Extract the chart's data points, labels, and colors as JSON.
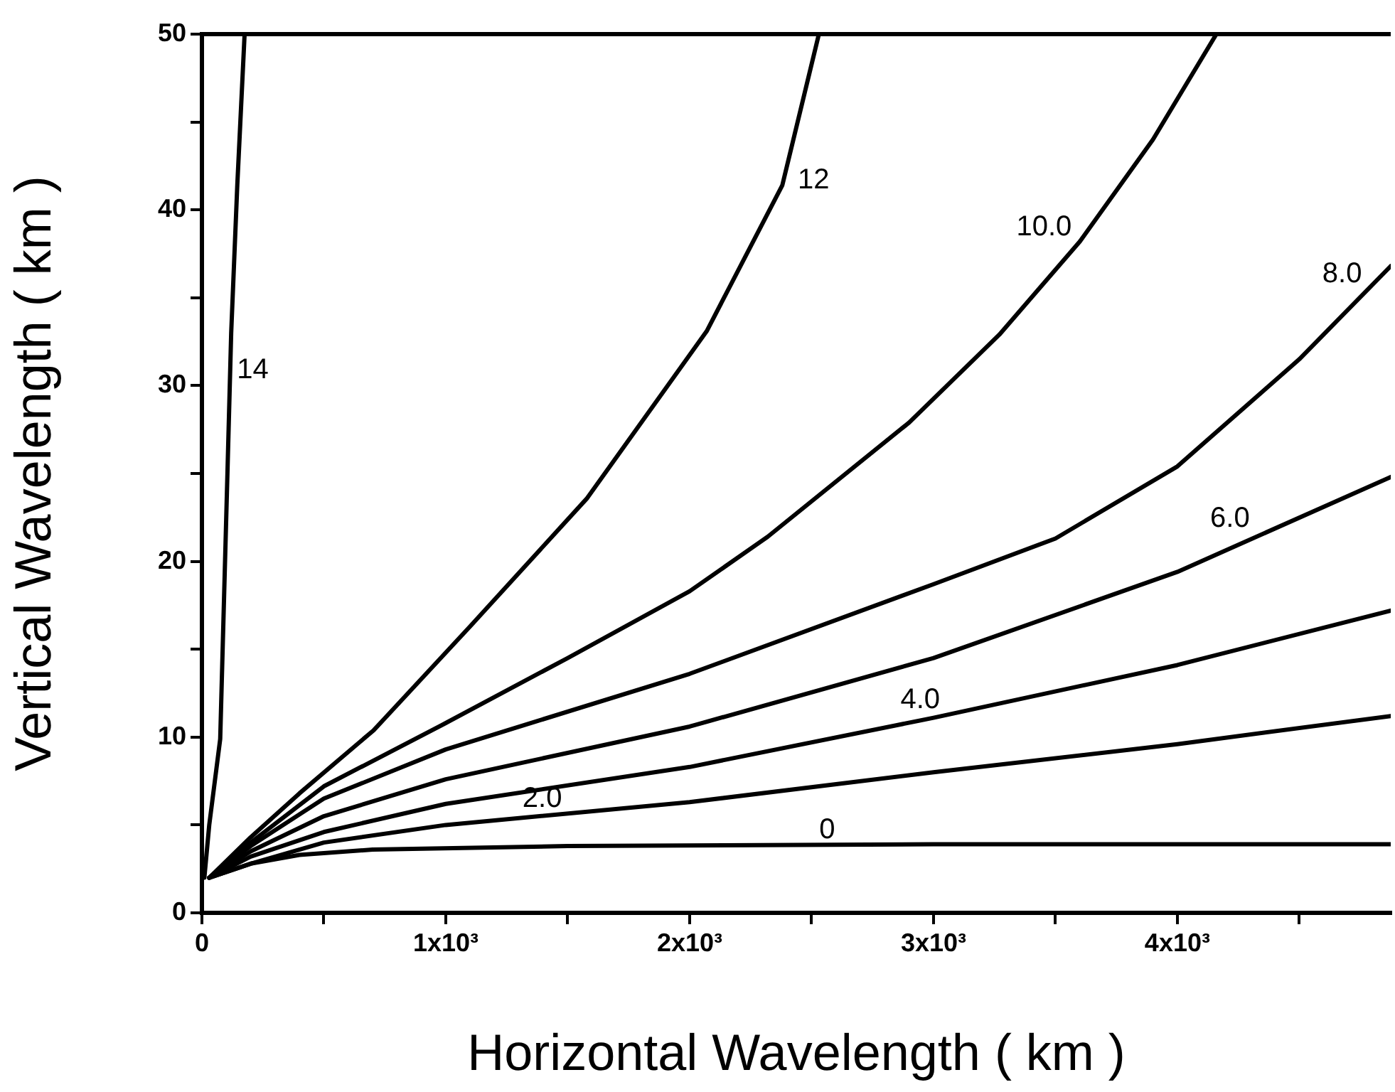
{
  "chart_data": {
    "type": "line",
    "xlabel": "Horizontal Wavelength ( km )",
    "ylabel": "Vertical Wavelength ( km )",
    "xlim": [
      0,
      4875
    ],
    "ylim": [
      0,
      50
    ],
    "xticks": [
      0,
      {
        "value": 500,
        "label": null
      },
      {
        "value": 1000,
        "label": "1x10³"
      },
      {
        "value": 1500,
        "label": null
      },
      {
        "value": 2000,
        "label": "2x10³"
      },
      {
        "value": 2500,
        "label": null
      },
      {
        "value": 3000,
        "label": "3x10³"
      },
      {
        "value": 3500,
        "label": null
      },
      {
        "value": 4000,
        "label": "4x10³"
      },
      {
        "value": 4500,
        "label": null
      }
    ],
    "yticks": [
      0,
      {
        "value": 5,
        "label": null
      },
      10,
      {
        "value": 15,
        "label": null
      },
      20,
      {
        "value": 25,
        "label": null
      },
      30,
      {
        "value": 35,
        "label": null
      },
      40,
      {
        "value": 45,
        "label": null
      },
      50
    ],
    "grid": false,
    "legend": false,
    "marker": "none",
    "line_style": "solid",
    "series": [
      {
        "color": "#000000",
        "x": [
          10,
          30,
          75,
          105,
          120,
          145,
          175
        ],
        "values": [
          2,
          5,
          9.9,
          25.2,
          33,
          41.4,
          50
        ]
      },
      {
        "color": "#000000",
        "x": [
          30,
          200,
          400,
          705,
          1100,
          1580,
          2070,
          2380,
          2530
        ],
        "values": [
          2,
          4.3,
          6.8,
          10.4,
          16.3,
          23.6,
          33.1,
          41.4,
          50
        ]
      },
      {
        "color": "#000000",
        "x": [
          30,
          200,
          500,
          1000,
          1500,
          2000,
          2320,
          2900,
          3270,
          3600,
          3900,
          4160
        ],
        "values": [
          2,
          4,
          7.2,
          10.8,
          14.5,
          18.3,
          21.4,
          27.9,
          32.9,
          38.2,
          44,
          50
        ]
      },
      {
        "color": "#000000",
        "x": [
          30,
          200,
          500,
          1000,
          2000,
          3000,
          3500,
          4000,
          4500,
          4875
        ],
        "values": [
          2,
          3.8,
          6.5,
          9.3,
          13.6,
          18.7,
          21.3,
          25.4,
          31.5,
          36.8
        ]
      },
      {
        "color": "#000000",
        "x": [
          30,
          200,
          500,
          1000,
          2000,
          3000,
          4000,
          4875
        ],
        "values": [
          2,
          3.5,
          5.5,
          7.6,
          10.6,
          14.5,
          19.4,
          24.8
        ]
      },
      {
        "color": "#000000",
        "x": [
          30,
          200,
          500,
          1000,
          2000,
          3000,
          4000,
          4875
        ],
        "values": [
          2,
          3.2,
          4.6,
          6.2,
          8.3,
          11.1,
          14.1,
          17.2
        ]
      },
      {
        "color": "#000000",
        "x": [
          30,
          200,
          500,
          1000,
          2000,
          3000,
          4000,
          4875
        ],
        "values": [
          2,
          2.8,
          4,
          5,
          6.3,
          8,
          9.6,
          11.2
        ]
      },
      {
        "color": "#000000",
        "x": [
          30,
          200,
          400,
          700,
          1500,
          3000,
          4875
        ],
        "values": [
          2,
          2.8,
          3.3,
          3.6,
          3.8,
          3.9,
          3.9
        ]
      }
    ],
    "annotations": [
      {
        "text": "14",
        "x": 120,
        "y": 32
      },
      {
        "text": "12",
        "x": 2420,
        "y": 42.8
      },
      {
        "text": "10.0",
        "x": 3590,
        "y": 38.2
      },
      {
        "text": "8.0",
        "x": 4780,
        "y": 35.5
      },
      {
        "text": "6.0",
        "x": 4320,
        "y": 21.6
      },
      {
        "text": "4.0",
        "x": 3050,
        "y": 11.3
      },
      {
        "text": "2.0",
        "x": 1500,
        "y": 5.65
      },
      {
        "text": "0",
        "x": 2620,
        "y": 3.9
      }
    ]
  }
}
